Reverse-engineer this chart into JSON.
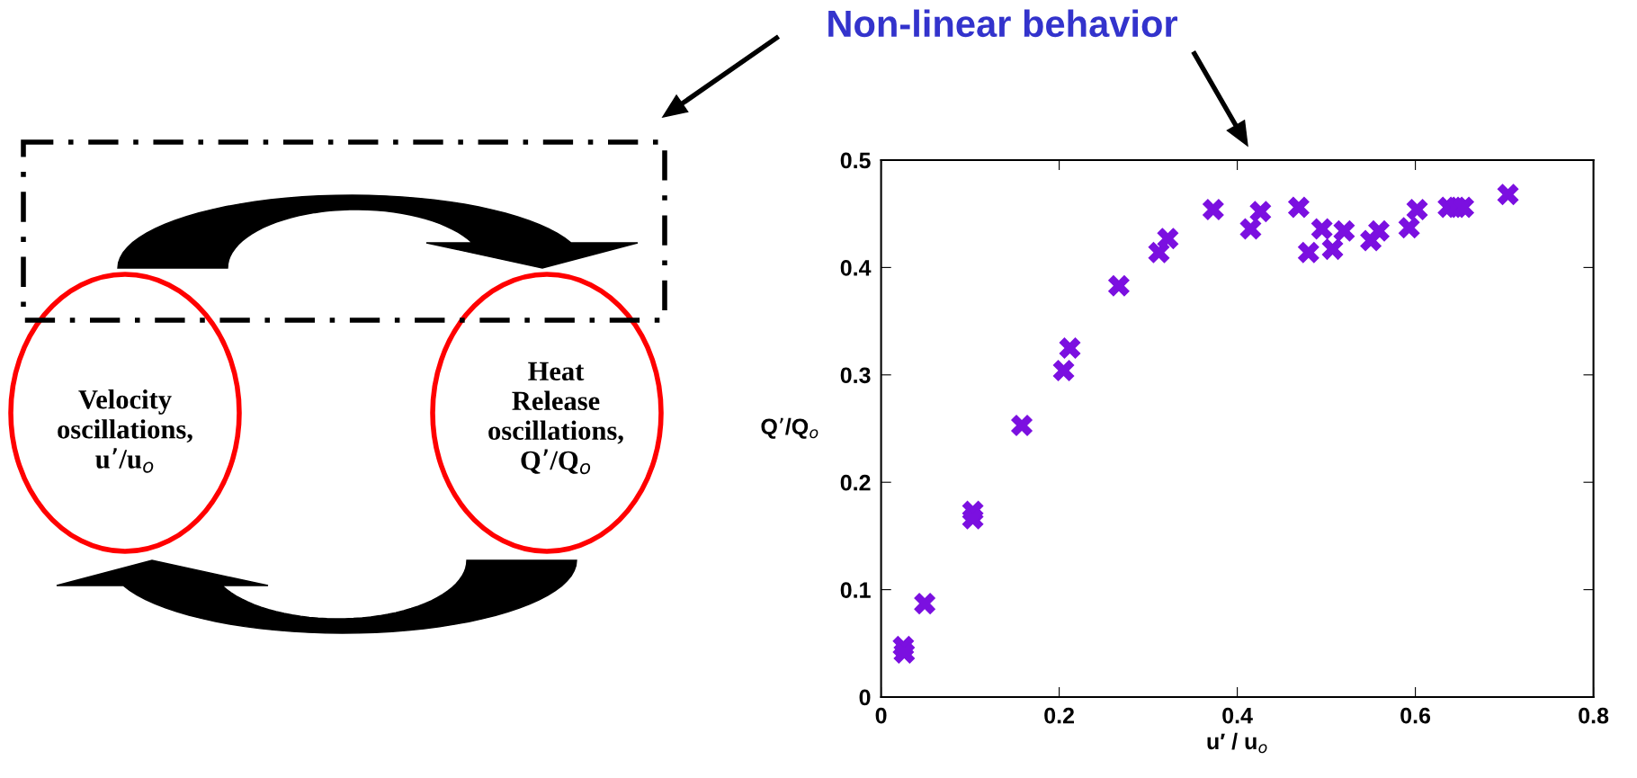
{
  "chart_data": {
    "type": "scatter",
    "xlabel": "u′ / u$_{o}$",
    "ylabel": "Q’/Q$_{o}$",
    "annotations": [
      "Non-linear behavior",
      "Velocity\noscillations,\nu’/u$_{o}$",
      "Heat\nRelease\noscillations,\nQ’/Q$_{o}$"
    ],
    "marker": "cross",
    "xlim": [
      0,
      0.8
    ],
    "ylim": [
      0,
      0.5
    ],
    "xticks": [
      0,
      0.2,
      0.4,
      0.6,
      0.8
    ],
    "yticks": [
      0,
      0.1,
      0.2,
      0.3,
      0.4,
      0.5
    ],
    "series": [
      {
        "color": "#7b10e0",
        "x": [
          0.025,
          0.026,
          0.049,
          0.103,
          0.103,
          0.158,
          0.205,
          0.212,
          0.267,
          0.312,
          0.322,
          0.373,
          0.415,
          0.426,
          0.469,
          0.48,
          0.495,
          0.507,
          0.52,
          0.55,
          0.559,
          0.593,
          0.602,
          0.637,
          0.646,
          0.654,
          0.704
        ],
        "values": [
          0.047,
          0.041,
          0.087,
          0.173,
          0.166,
          0.253,
          0.304,
          0.325,
          0.383,
          0.414,
          0.427,
          0.454,
          0.436,
          0.452,
          0.456,
          0.414,
          0.436,
          0.417,
          0.434,
          0.425,
          0.434,
          0.437,
          0.454,
          0.456,
          0.456,
          0.456,
          0.468
        ]
      }
    ]
  }
}
